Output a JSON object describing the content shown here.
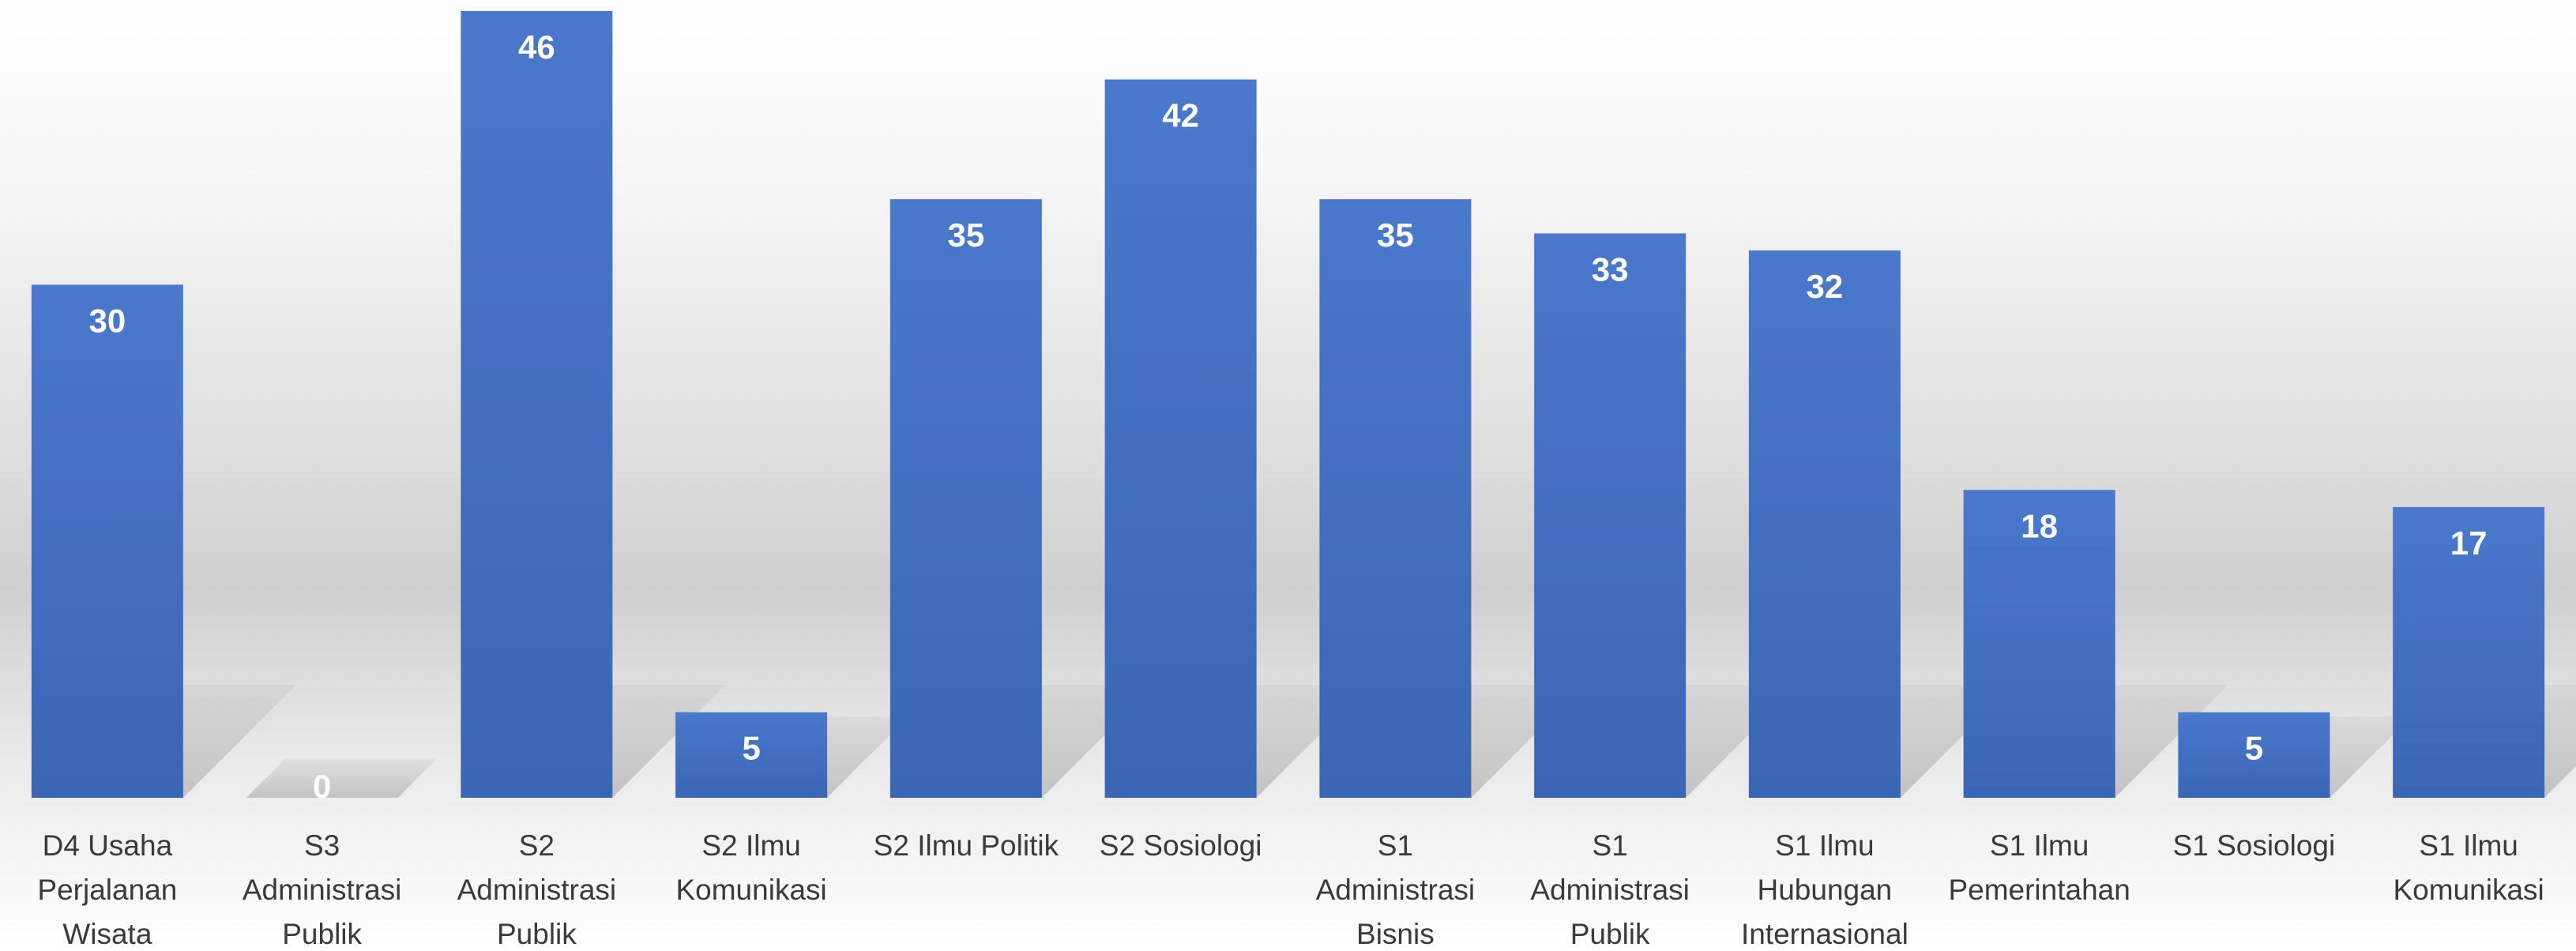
{
  "chart_data": {
    "type": "bar",
    "title": "",
    "xlabel": "",
    "ylabel": "",
    "ylim": [
      0,
      46
    ],
    "grid": false,
    "legend": "none",
    "bar_color": "#4472C4",
    "label_color": "#ffffff",
    "category_label_color": "#3a3a3a",
    "categories": [
      [
        "D4 Usaha",
        "Perjalanan",
        "Wisata"
      ],
      [
        "S3",
        "Administrasi",
        "Publik"
      ],
      [
        "S2",
        "Administrasi",
        "Publik"
      ],
      [
        "S2 Ilmu",
        "Komunikasi"
      ],
      [
        "S2 Ilmu Politik"
      ],
      [
        "S2 Sosiologi"
      ],
      [
        "S1",
        "Administrasi",
        "Bisnis"
      ],
      [
        "S1",
        "Administrasi",
        "Publik"
      ],
      [
        "S1 Ilmu",
        "Hubungan",
        "Internasional"
      ],
      [
        "S1 Ilmu",
        "Pemerintahan"
      ],
      [
        "S1 Sosiologi"
      ],
      [
        "S1 Ilmu",
        "Komunikasi"
      ]
    ],
    "values": [
      30,
      0,
      46,
      5,
      35,
      42,
      35,
      33,
      32,
      18,
      5,
      17
    ]
  }
}
